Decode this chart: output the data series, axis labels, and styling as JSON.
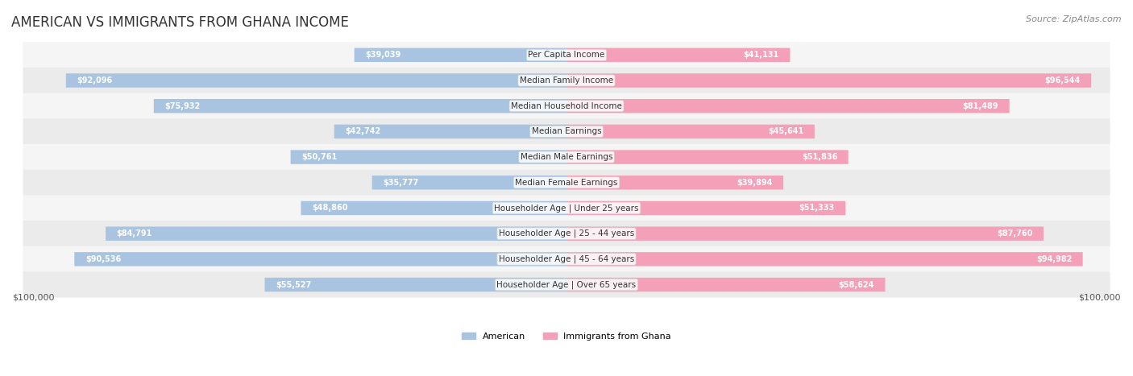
{
  "title": "AMERICAN VS IMMIGRANTS FROM GHANA INCOME",
  "source": "Source: ZipAtlas.com",
  "categories": [
    "Per Capita Income",
    "Median Family Income",
    "Median Household Income",
    "Median Earnings",
    "Median Male Earnings",
    "Median Female Earnings",
    "Householder Age | Under 25 years",
    "Householder Age | 25 - 44 years",
    "Householder Age | 45 - 64 years",
    "Householder Age | Over 65 years"
  ],
  "american_values": [
    39039,
    92096,
    75932,
    42742,
    50761,
    35777,
    48860,
    84791,
    90536,
    55527
  ],
  "ghana_values": [
    41131,
    96544,
    81489,
    45641,
    51836,
    39894,
    51333,
    87760,
    94982,
    58624
  ],
  "american_labels": [
    "$39,039",
    "$92,096",
    "$75,932",
    "$42,742",
    "$50,761",
    "$35,777",
    "$48,860",
    "$84,791",
    "$90,536",
    "$55,527"
  ],
  "ghana_labels": [
    "$41,131",
    "$96,544",
    "$81,489",
    "$45,641",
    "$51,836",
    "$39,894",
    "$51,333",
    "$87,760",
    "$94,982",
    "$58,624"
  ],
  "american_color": "#a8c4e0",
  "ghana_color": "#f4a0b8",
  "american_color_dark": "#7bafd4",
  "ghana_color_dark": "#f06090",
  "american_label_color_inside": "#ffffff",
  "ghana_label_color_inside": "#ffffff",
  "american_label_color_outside": "#555555",
  "ghana_label_color_outside": "#555555",
  "max_value": 100000,
  "bar_height": 0.55,
  "row_bg_color": "#f0f0f0",
  "row_bg_alt_color": "#e8e8e8",
  "background_color": "#ffffff",
  "legend_american": "American",
  "legend_ghana": "Immigrants from Ghana",
  "xlabel_left": "$100,000",
  "xlabel_right": "$100,000"
}
